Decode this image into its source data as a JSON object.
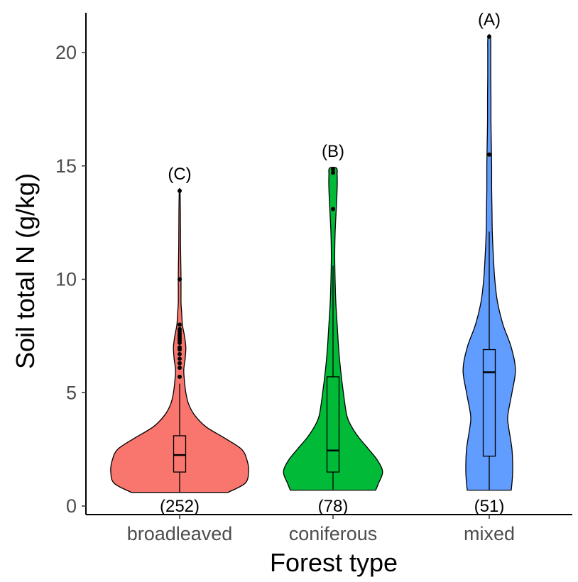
{
  "chart_data": {
    "type": "violin",
    "xlabel": "Forest type",
    "ylabel": "Soil total N (g/kg)",
    "ylim": [
      0,
      21.5
    ],
    "yticks": [
      0,
      5,
      10,
      15,
      20
    ],
    "grid": false,
    "categories": [
      "broadleaved",
      "coniferous",
      "mixed"
    ],
    "colors": [
      "#F8766D",
      "#00BA38",
      "#619CFF"
    ],
    "groups": [
      {
        "category": "broadleaved",
        "letter": "(C)",
        "n_label": "(252)",
        "min": 0.6,
        "q1": 1.5,
        "median": 2.25,
        "q3": 3.1,
        "whisker_high": 5.4,
        "max": 13.9,
        "outliers": [
          5.7,
          6.1,
          6.3,
          6.5,
          6.7,
          6.9,
          7.0,
          7.2,
          7.3,
          7.4,
          7.5,
          7.6,
          7.7,
          7.8,
          8.0,
          10.0,
          13.9
        ],
        "density": [
          [
            0.6,
            0.7
          ],
          [
            1.0,
            0.95
          ],
          [
            1.5,
            1.0
          ],
          [
            2.0,
            0.98
          ],
          [
            2.5,
            0.9
          ],
          [
            3.0,
            0.65
          ],
          [
            3.5,
            0.38
          ],
          [
            4.0,
            0.22
          ],
          [
            4.5,
            0.13
          ],
          [
            5.0,
            0.09
          ],
          [
            5.5,
            0.07
          ],
          [
            6.0,
            0.06
          ],
          [
            6.5,
            0.08
          ],
          [
            7.0,
            0.09
          ],
          [
            7.5,
            0.07
          ],
          [
            8.0,
            0.04
          ],
          [
            8.5,
            0.03
          ],
          [
            9.0,
            0.02
          ],
          [
            10.0,
            0.02
          ],
          [
            11.0,
            0.015
          ],
          [
            12.0,
            0.012
          ],
          [
            13.0,
            0.01
          ],
          [
            13.9,
            0.005
          ]
        ]
      },
      {
        "category": "coniferous",
        "letter": "(B)",
        "n_label": "(78)",
        "min": 0.7,
        "q1": 1.5,
        "median": 2.45,
        "q3": 5.7,
        "whisker_high": 10.6,
        "max": 14.9,
        "outliers": [
          13.1,
          14.7,
          14.85
        ],
        "density": [
          [
            0.7,
            0.62
          ],
          [
            1.0,
            0.66
          ],
          [
            1.5,
            0.72
          ],
          [
            2.0,
            0.65
          ],
          [
            2.5,
            0.52
          ],
          [
            3.0,
            0.38
          ],
          [
            3.5,
            0.27
          ],
          [
            4.0,
            0.2
          ],
          [
            5.0,
            0.15
          ],
          [
            6.0,
            0.11
          ],
          [
            7.0,
            0.08
          ],
          [
            8.0,
            0.06
          ],
          [
            9.0,
            0.04
          ],
          [
            10.0,
            0.03
          ],
          [
            11.0,
            0.025
          ],
          [
            12.0,
            0.03
          ],
          [
            13.0,
            0.045
          ],
          [
            14.0,
            0.06
          ],
          [
            14.6,
            0.06
          ],
          [
            14.9,
            0.05
          ]
        ]
      },
      {
        "category": "mixed",
        "letter": "(A)",
        "n_label": "(51)",
        "min": 0.7,
        "q1": 2.2,
        "median": 5.9,
        "q3": 6.9,
        "whisker_high": 12.1,
        "max": 20.7,
        "outliers": [
          15.5,
          20.7
        ],
        "density": [
          [
            0.7,
            0.32
          ],
          [
            1.5,
            0.34
          ],
          [
            2.5,
            0.33
          ],
          [
            3.5,
            0.28
          ],
          [
            4.0,
            0.27
          ],
          [
            5.0,
            0.33
          ],
          [
            6.0,
            0.38
          ],
          [
            7.0,
            0.32
          ],
          [
            8.0,
            0.2
          ],
          [
            9.0,
            0.12
          ],
          [
            10.0,
            0.08
          ],
          [
            11.0,
            0.06
          ],
          [
            12.0,
            0.045
          ],
          [
            13.0,
            0.04
          ],
          [
            14.0,
            0.035
          ],
          [
            15.0,
            0.035
          ],
          [
            16.0,
            0.03
          ],
          [
            17.0,
            0.025
          ],
          [
            18.0,
            0.025
          ],
          [
            19.0,
            0.022
          ],
          [
            20.0,
            0.022
          ],
          [
            20.7,
            0.018
          ]
        ]
      }
    ]
  }
}
